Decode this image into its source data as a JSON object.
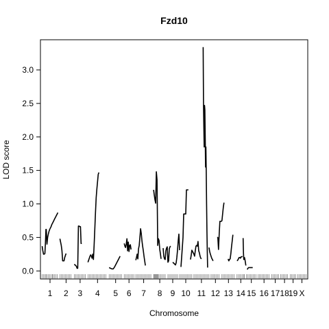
{
  "chart_data": {
    "type": "line",
    "title": "Fzd10",
    "xlabel": "Chromosome",
    "ylabel": "LOD score",
    "ylim": [
      -0.12,
      3.45
    ],
    "yticks": [
      "0.0",
      "0.5",
      "1.0",
      "1.5",
      "2.0",
      "2.5",
      "3.0"
    ],
    "ytick_values": [
      0,
      0.5,
      1,
      1.5,
      2,
      2.5,
      3
    ],
    "grid": false,
    "legend": "none",
    "line_color": "#000000",
    "chromosomes": [
      "1",
      "2",
      "3",
      "4",
      "5",
      "6",
      "7",
      "8",
      "9",
      "10",
      "11",
      "12",
      "13",
      "14",
      "15",
      "16",
      "17",
      "18",
      "19",
      "X"
    ],
    "chromosome_ranges": [
      [
        0,
        23
      ],
      [
        26,
        44
      ],
      [
        47,
        64
      ],
      [
        67,
        95
      ],
      [
        98,
        117
      ],
      [
        120,
        134
      ],
      [
        137,
        160
      ],
      [
        163,
        181
      ],
      [
        184,
        198
      ],
      [
        201,
        219
      ],
      [
        222,
        244
      ],
      [
        247,
        260
      ],
      [
        263,
        282
      ],
      [
        285,
        296
      ],
      [
        299,
        313
      ],
      [
        316,
        333
      ],
      [
        336,
        346
      ],
      [
        349,
        360
      ],
      [
        363,
        371
      ],
      [
        374,
        386
      ]
    ],
    "series": [
      {
        "x": [
          0,
          1,
          2,
          3,
          4,
          4.8,
          5.5,
          6,
          7,
          8,
          9,
          10,
          11,
          12,
          13,
          14,
          15,
          16,
          17,
          18,
          19,
          20,
          21,
          22,
          23
        ],
        "y": [
          0.37,
          0.3,
          0.25,
          0.25,
          0.26,
          0.42,
          0.62,
          0.62,
          0.4,
          0.5,
          0.55,
          0.59,
          0.62,
          0.64,
          0.66,
          0.69,
          0.71,
          0.73,
          0.75,
          0.77,
          0.79,
          0.81,
          0.83,
          0.85,
          0.87
        ]
      },
      {
        "x": [
          26,
          27,
          28,
          29,
          30,
          31,
          32,
          33,
          34,
          35
        ],
        "y": [
          0.48,
          0.43,
          0.38,
          0.3,
          0.15,
          0.15,
          0.15,
          0.2,
          0.23,
          0.26
        ]
      },
      {
        "x": [
          47,
          48,
          49,
          50,
          51,
          52,
          53,
          54,
          55,
          56,
          57,
          58
        ],
        "y": [
          0.1,
          0.09,
          0.08,
          0.07,
          0.04,
          0.04,
          0.67,
          0.67,
          0.66,
          0.66,
          0.41,
          0.41
        ]
      },
      {
        "x": [
          67,
          68,
          69,
          70,
          71,
          72,
          73,
          74,
          75,
          76,
          77,
          78,
          79,
          80,
          81,
          82,
          83
        ],
        "y": [
          0.13,
          0.16,
          0.19,
          0.22,
          0.24,
          0.22,
          0.19,
          0.25,
          0.17,
          0.38,
          0.62,
          0.87,
          1.09,
          1.22,
          1.33,
          1.44,
          1.47
        ]
      },
      {
        "x": [
          98,
          100,
          102,
          104,
          106,
          108,
          110,
          112,
          114
        ],
        "y": [
          0.05,
          0.04,
          0.03,
          0.03,
          0.06,
          0.1,
          0.14,
          0.18,
          0.22
        ]
      },
      {
        "x": [
          120,
          121,
          122,
          123,
          124,
          125,
          126,
          127,
          128,
          129,
          130
        ],
        "y": [
          0.41,
          0.37,
          0.35,
          0.4,
          0.48,
          0.3,
          0.43,
          0.29,
          0.38,
          0.39,
          0.32
        ]
      },
      {
        "x": [
          137,
          138,
          139,
          140,
          141,
          142,
          143,
          144,
          145,
          146,
          147,
          148,
          149,
          150,
          151
        ],
        "y": [
          0.16,
          0.2,
          0.25,
          0.18,
          0.33,
          0.38,
          0.5,
          0.63,
          0.56,
          0.45,
          0.37,
          0.3,
          0.22,
          0.15,
          0.08
        ]
      },
      {
        "x": [
          163,
          164,
          165,
          166,
          167,
          168,
          169,
          170,
          171,
          172,
          173,
          174
        ],
        "y": [
          1.21,
          1.13,
          1.06,
          1.01,
          1.48,
          1.36,
          0.38,
          0.48,
          0.45,
          0.32,
          0.25,
          0.18
        ]
      },
      {
        "x": [
          177,
          178,
          179,
          180,
          181,
          182,
          183,
          184,
          185,
          186,
          187,
          188
        ],
        "y": [
          0.34,
          0.22,
          0.18,
          0.17,
          0.3,
          0.34,
          0.36,
          0.13,
          0.15,
          0.33,
          0.36,
          0.37
        ]
      },
      {
        "x": [
          191,
          192,
          193,
          194,
          195,
          196,
          197,
          198,
          199,
          200,
          201
        ],
        "y": [
          0.13,
          0.12,
          0.11,
          0.1,
          0.09,
          0.12,
          0.2,
          0.31,
          0.45,
          0.55,
          0.31
        ]
      },
      {
        "x": [
          203,
          204,
          205,
          206,
          207,
          208,
          209,
          210,
          211,
          212,
          213,
          214
        ],
        "y": [
          0.06,
          0.2,
          0.35,
          0.5,
          0.85,
          0.85,
          0.85,
          0.85,
          1.21,
          1.21,
          1.21,
          1.21
        ]
      },
      {
        "x": [
          217,
          218,
          219,
          220,
          221,
          222,
          223,
          224,
          225,
          226,
          227,
          228,
          229,
          230,
          231,
          232,
          233
        ],
        "y": [
          0.17,
          0.23,
          0.31,
          0.29,
          0.27,
          0.25,
          0.22,
          0.3,
          0.37,
          0.38,
          0.37,
          0.44,
          0.3,
          0.27,
          0.22,
          0.19,
          0.18
        ]
      },
      {
        "x": [
          235.5,
          236,
          236.5,
          237,
          237.5,
          238,
          238.5,
          239,
          239.5,
          240,
          240.5,
          241,
          241.5,
          242
        ],
        "y": [
          3.34,
          2.5,
          2.15,
          1.85,
          2.47,
          2.4,
          2.0,
          1.55,
          1.85,
          1.48,
          1.0,
          0.6,
          0.3,
          0.05
        ]
      },
      {
        "x": [
          244,
          245,
          246,
          247,
          248,
          249,
          250
        ],
        "y": [
          0.35,
          0.29,
          0.25,
          0.22,
          0.19,
          0.17,
          0.15
        ]
      },
      {
        "x": [
          256,
          257,
          258,
          259,
          260,
          261,
          262,
          263,
          264,
          265,
          266
        ],
        "y": [
          0.5,
          0.5,
          0.32,
          0.55,
          0.74,
          0.74,
          0.74,
          0.75,
          0.85,
          0.95,
          1.02
        ]
      },
      {
        "x": [
          272,
          273,
          274,
          275,
          276,
          277,
          278,
          279
        ],
        "y": [
          0.18,
          0.15,
          0.17,
          0.18,
          0.26,
          0.36,
          0.45,
          0.54
        ]
      },
      {
        "x": [
          285,
          286,
          287,
          288,
          289,
          290,
          291,
          292,
          293
        ],
        "y": [
          0.15,
          0.16,
          0.18,
          0.2,
          0.2,
          0.19,
          0.21,
          0.21,
          0.22
        ]
      },
      {
        "x": [
          294,
          294.5,
          295,
          296,
          297,
          298
        ],
        "y": [
          0.49,
          0.27,
          0.17,
          0.2,
          0.15,
          0.08
        ]
      },
      {
        "x": [
          300,
          301,
          302,
          303,
          304,
          305,
          306,
          307,
          308
        ],
        "y": [
          0.02,
          0.04,
          0.05,
          0.05,
          0.05,
          0.05,
          0.05,
          0.05,
          0.05
        ]
      }
    ],
    "marker_x": [
      0,
      2,
      4,
      5.5,
      7,
      9,
      11,
      13,
      15,
      16,
      18,
      20,
      22,
      26,
      28,
      30,
      32,
      34,
      36,
      38,
      40,
      42,
      47,
      49,
      51,
      53,
      55,
      57,
      59,
      61,
      63,
      67,
      69,
      71,
      73,
      75,
      77,
      79,
      81,
      83,
      85,
      87,
      89,
      91,
      93,
      98,
      100,
      102,
      104,
      106,
      108,
      110,
      112,
      114,
      116,
      120,
      122,
      124,
      126,
      128,
      130,
      132,
      134,
      137,
      139,
      141,
      143,
      145,
      147,
      149,
      151,
      153,
      155,
      157,
      159,
      163,
      164,
      165,
      166,
      167,
      168,
      169,
      170,
      172,
      174,
      176,
      178,
      180,
      184,
      186,
      188,
      190,
      192,
      194,
      196,
      198,
      201,
      203,
      205,
      207,
      209,
      211,
      213,
      215,
      217,
      219,
      222,
      224,
      226,
      228,
      230,
      232,
      234,
      236,
      238,
      240,
      242,
      244,
      247,
      249,
      251,
      253,
      255,
      257,
      259,
      263,
      265,
      267,
      269,
      271,
      273,
      275,
      277,
      279,
      281,
      285,
      287,
      289,
      291,
      293,
      295,
      296,
      299,
      301,
      303,
      305,
      307,
      309,
      311,
      313,
      316,
      318,
      320,
      322,
      324,
      326,
      328,
      330,
      332,
      336,
      338,
      340,
      342,
      344,
      346,
      349,
      351,
      353,
      355,
      357,
      359,
      363,
      365,
      367,
      369,
      371,
      374,
      376,
      378,
      380,
      382,
      384,
      386
    ]
  }
}
